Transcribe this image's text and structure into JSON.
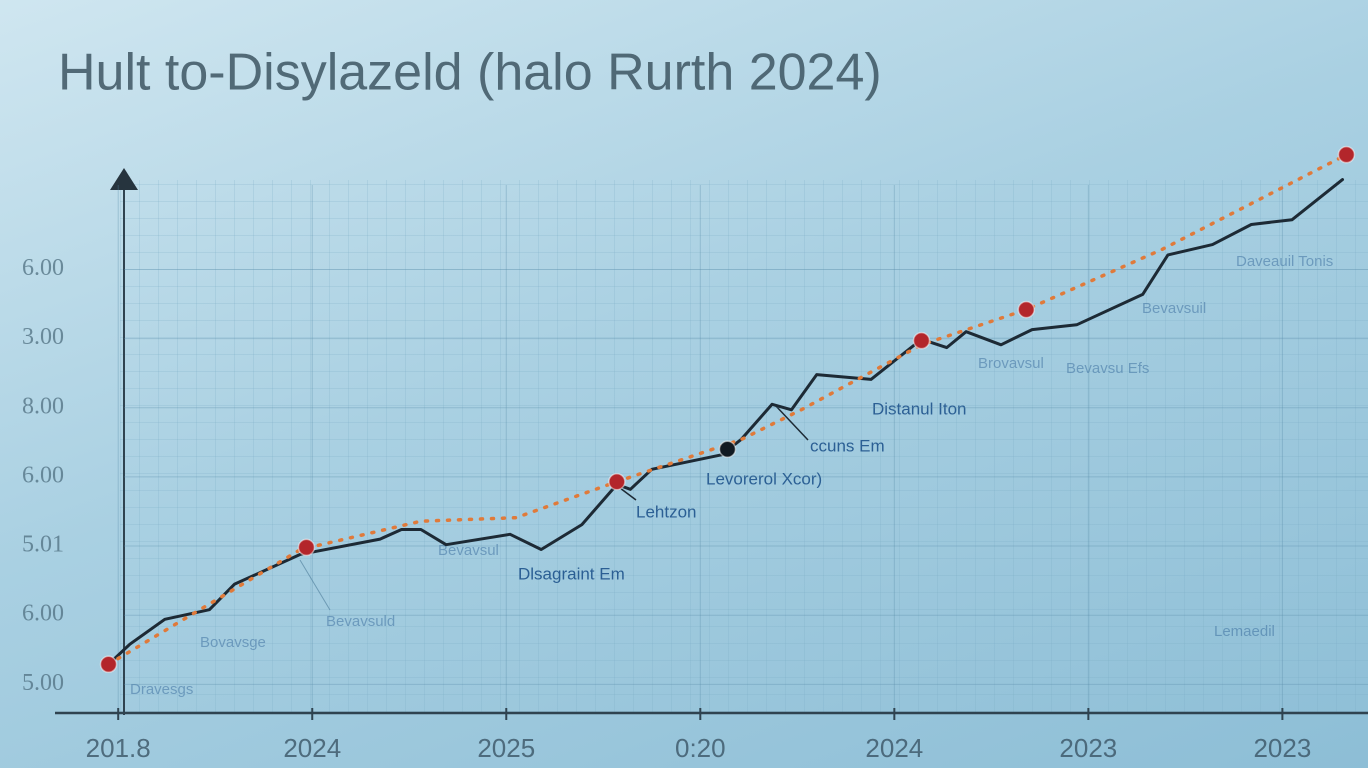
{
  "chart_data": {
    "type": "line",
    "title": "Hult to-Disylazeld (halo Rurth 2024)",
    "xlim": [
      -0.3,
      6.4
    ],
    "xticks": [
      {
        "value": 0,
        "label": "201.8"
      },
      {
        "value": 1,
        "label": "2024"
      },
      {
        "value": 2,
        "label": "2025"
      },
      {
        "value": 3,
        "label": "0:20"
      },
      {
        "value": 4,
        "label": "2024"
      },
      {
        "value": 5,
        "label": "2023"
      },
      {
        "value": 6,
        "label": "2023"
      }
    ],
    "ylim": [
      0.6,
      8.8
    ],
    "yticks": [
      {
        "value": 1,
        "label": "5.00"
      },
      {
        "value": 2,
        "label": "6.00"
      },
      {
        "value": 3,
        "label": "5.01"
      },
      {
        "value": 4,
        "label": "6.00"
      },
      {
        "value": 5,
        "label": "8.00"
      },
      {
        "value": 6,
        "label": "3.00"
      },
      {
        "value": 7,
        "label": "6.00"
      }
    ],
    "grid": true,
    "series": [
      {
        "style": "line",
        "color": "#1d2a35",
        "x": [
          -0.05,
          0.06,
          0.24,
          0.47,
          0.6,
          0.94,
          1.35,
          1.46,
          1.56,
          1.69,
          2.02,
          2.18,
          2.39,
          2.57,
          2.64,
          2.75,
          3.11,
          3.21,
          3.37,
          3.47,
          3.6,
          3.88,
          4.14,
          4.27,
          4.37,
          4.55,
          4.71,
          4.94,
          5.28,
          5.41,
          5.64,
          5.84,
          6.05,
          6.31
        ],
        "values": [
          1.29,
          1.58,
          1.94,
          2.08,
          2.45,
          2.88,
          3.1,
          3.24,
          3.24,
          3.02,
          3.17,
          2.95,
          3.31,
          3.89,
          3.82,
          4.11,
          4.32,
          4.54,
          5.05,
          4.97,
          5.48,
          5.41,
          5.99,
          5.87,
          6.1,
          5.91,
          6.13,
          6.2,
          6.64,
          7.21,
          7.36,
          7.65,
          7.72,
          8.3
        ]
      },
      {
        "style": "dotted",
        "color": "#e07a3a",
        "x": [
          -0.05,
          0.94,
          1.56,
          2.05,
          2.57,
          3.21,
          3.52,
          4.14,
          4.68,
          5.38,
          6.33
        ],
        "values": [
          1.29,
          2.95,
          3.36,
          3.41,
          3.93,
          4.54,
          4.97,
          5.91,
          6.42,
          7.29,
          8.66
        ]
      },
      {
        "style": "markers",
        "color": "#b3262b",
        "x": [
          -0.05,
          0.97,
          2.57,
          4.14,
          4.68,
          6.33
        ],
        "values": [
          1.29,
          2.98,
          3.93,
          5.97,
          6.42,
          8.66
        ]
      },
      {
        "style": "markers",
        "color": "#111a22",
        "x": [
          3.14
        ],
        "values": [
          4.4
        ]
      }
    ],
    "annotations": [
      "Levorerol Xcor)",
      "Lehtzon",
      "Dlsagraint Em",
      "Bevavsul",
      "ccuns Em",
      "Distanul Iton",
      "Bevavsuld",
      "Brovavsul",
      "Bevavsu Efs",
      "Bevavsuil",
      "Daveauil Tonis",
      "Bovavsge",
      "Dravesgs",
      "Lemaedil"
    ]
  }
}
